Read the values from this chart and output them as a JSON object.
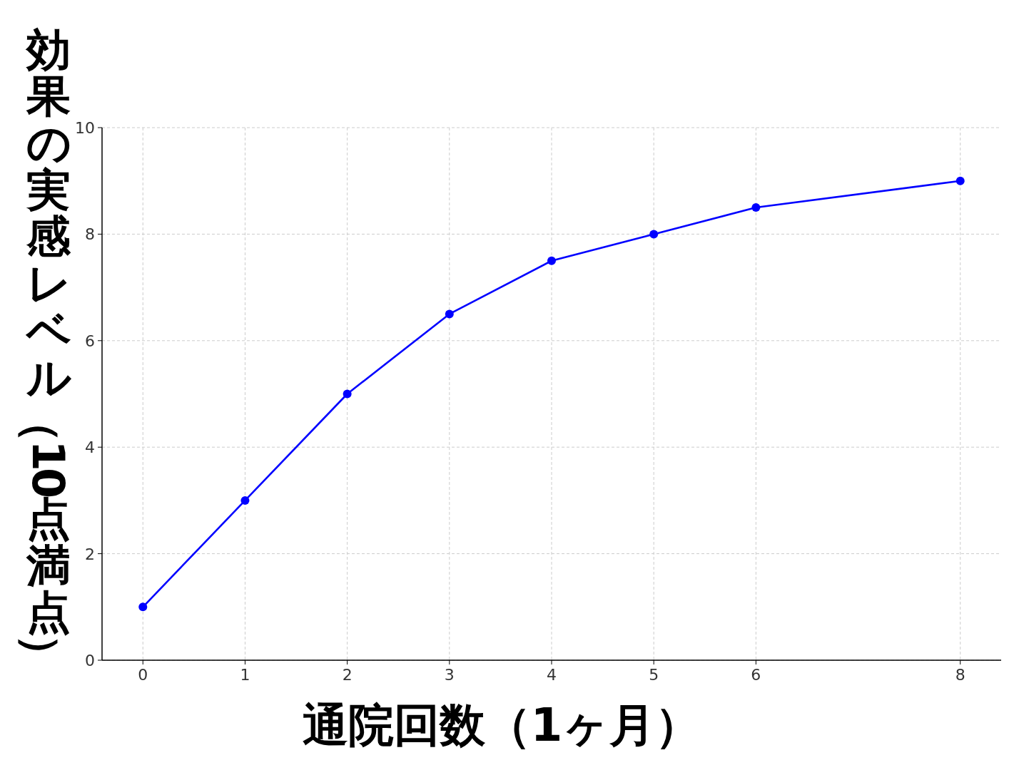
{
  "chart_data": {
    "type": "line",
    "xlabel": "通院回数（1ヶ月）",
    "ylabel": "効果の実感レベル（10点満点）",
    "x": [
      0,
      1,
      2,
      3,
      4,
      5,
      6,
      8
    ],
    "series": [
      {
        "color": "#0000ff",
        "values": [
          1,
          3,
          5,
          6.5,
          7.5,
          8,
          8.5,
          9
        ]
      }
    ],
    "xlim": [
      -0.4,
      8.4
    ],
    "ylim": [
      0,
      10
    ],
    "xticks": [
      0,
      1,
      2,
      3,
      4,
      5,
      6,
      8
    ],
    "yticks": [
      0,
      2,
      4,
      6,
      8,
      10
    ],
    "grid": true,
    "marker": "circle",
    "line_style": "solid"
  }
}
